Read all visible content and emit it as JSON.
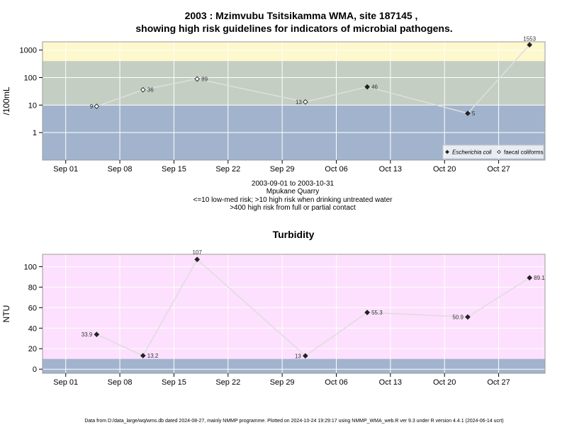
{
  "page": {
    "title_line1": "2003 : Mzimvubu Tsitsikamma WMA, site 187145 ,",
    "title_line2": "showing high risk guidelines for indicators of microbial pathogens.",
    "info_lines": [
      "2003-09-01 to 2003-10-31",
      "Mpukane Quarry",
      "<=10 low-med risk; >10 high risk when drinking untreated water",
      ">400 high risk from full or partial contact"
    ],
    "footer": "Data from D:/data_large/wq/wms.db dated 2024-08-27, mainly NMMP programme. Plotted on 2024-10-24 19:29:17 using NMMP_WMA_web.R ver 9.3 under R version 4.4.1 (2024-06-14 ucrt)"
  },
  "colors": {
    "band_low": "#a2b4cd",
    "band_mid": "#c4cec3",
    "band_high": "#fdf8cd",
    "turb_bg": "#fde0fd",
    "turb_low": "#a2b4cd",
    "line": "#dedede",
    "grid": "#ffffff"
  },
  "chart_data": [
    {
      "type": "line",
      "title": "",
      "ylabel": "/100mL",
      "yscale": "log",
      "ylim": [
        0.1,
        2000
      ],
      "yticks": [
        1,
        10,
        100,
        1000
      ],
      "ytick_labels": [
        "1",
        "10",
        "100",
        "1000"
      ],
      "x_range": [
        "2003-08-29",
        "2003-11-02"
      ],
      "xticks": [
        "2003-09-01",
        "2003-09-08",
        "2003-09-15",
        "2003-09-22",
        "2003-09-29",
        "2003-10-06",
        "2003-10-13",
        "2003-10-20",
        "2003-10-27"
      ],
      "xtick_labels": [
        "Sep 01",
        "Sep 08",
        "Sep 15",
        "Sep 22",
        "Sep 29",
        "Oct 06",
        "Oct 13",
        "Oct 20",
        "Oct 27"
      ],
      "bands": [
        {
          "from": 0.1,
          "to": 10,
          "color": "#a2b4cd"
        },
        {
          "from": 10,
          "to": 400,
          "color": "#c4cec3"
        },
        {
          "from": 400,
          "to": 2000,
          "color": "#fdf8cd"
        }
      ],
      "series": [
        {
          "name": "Escherichia coli",
          "marker": "filled-diamond",
          "points": [
            {
              "x": "2003-10-10",
              "y": 46,
              "label": "46"
            },
            {
              "x": "2003-10-23",
              "y": 5,
              "label": "5"
            },
            {
              "x": "2003-10-31",
              "y": 1553,
              "label": "1553"
            }
          ]
        },
        {
          "name": "faecal coliforms",
          "marker": "open-diamond",
          "points": [
            {
              "x": "2003-09-05",
              "y": 9,
              "label": "9"
            },
            {
              "x": "2003-09-11",
              "y": 36,
              "label": "36"
            },
            {
              "x": "2003-09-18",
              "y": 89,
              "label": "89"
            },
            {
              "x": "2003-10-02",
              "y": 13,
              "label": "13"
            }
          ]
        }
      ],
      "connect_all": true,
      "legend": {
        "position": "bottom-right",
        "entries": [
          "Escherichia coli",
          "faecal coliforms"
        ]
      }
    },
    {
      "type": "line",
      "title": "Turbidity",
      "ylabel": "NTU",
      "yscale": "linear",
      "ylim": [
        -4,
        112
      ],
      "yticks": [
        0,
        20,
        40,
        60,
        80,
        100
      ],
      "ytick_labels": [
        "0",
        "20",
        "40",
        "60",
        "80",
        "100"
      ],
      "x_range": [
        "2003-08-29",
        "2003-11-02"
      ],
      "xticks": [
        "2003-09-01",
        "2003-09-08",
        "2003-09-15",
        "2003-09-22",
        "2003-09-29",
        "2003-10-06",
        "2003-10-13",
        "2003-10-20",
        "2003-10-27"
      ],
      "xtick_labels": [
        "Sep 01",
        "Sep 08",
        "Sep 15",
        "Sep 22",
        "Sep 29",
        "Oct 06",
        "Oct 13",
        "Oct 20",
        "Oct 27"
      ],
      "bands": [
        {
          "from": -4,
          "to": 10,
          "color": "#a2b4cd"
        }
      ],
      "series": [
        {
          "name": "",
          "marker": "filled-diamond",
          "points": [
            {
              "x": "2003-09-05",
              "y": 33.9,
              "label": "33.9",
              "label_side": "left"
            },
            {
              "x": "2003-09-11",
              "y": 13.2,
              "label": "13.2",
              "label_side": "right"
            },
            {
              "x": "2003-09-18",
              "y": 107,
              "label": "107",
              "label_side": "top"
            },
            {
              "x": "2003-10-02",
              "y": 13,
              "label": "13",
              "label_side": "left"
            },
            {
              "x": "2003-10-10",
              "y": 55.3,
              "label": "55.3",
              "label_side": "right"
            },
            {
              "x": "2003-10-23",
              "y": 50.9,
              "label": "50.9",
              "label_side": "left"
            },
            {
              "x": "2003-10-31",
              "y": 89.1,
              "label": "89.1",
              "label_side": "right"
            }
          ]
        }
      ]
    }
  ]
}
